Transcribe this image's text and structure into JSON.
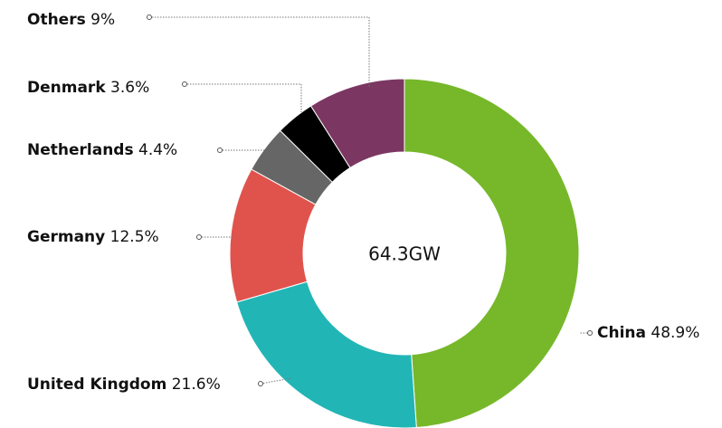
{
  "chart_data": {
    "type": "pie",
    "donut": true,
    "categories": [
      "China",
      "United Kingdom",
      "Germany",
      "Netherlands",
      "Denmark",
      "Others"
    ],
    "values": [
      48.9,
      21.6,
      12.5,
      4.4,
      3.6,
      9
    ],
    "value_labels": [
      "48.9%",
      "21.6%",
      "12.5%",
      "4.4%",
      "3.6%",
      "9%"
    ],
    "colors": [
      "#76b82a",
      "#22b5b5",
      "#e0534d",
      "#666666",
      "#000000",
      "#7b3762"
    ],
    "center_label": "64.3GW"
  }
}
